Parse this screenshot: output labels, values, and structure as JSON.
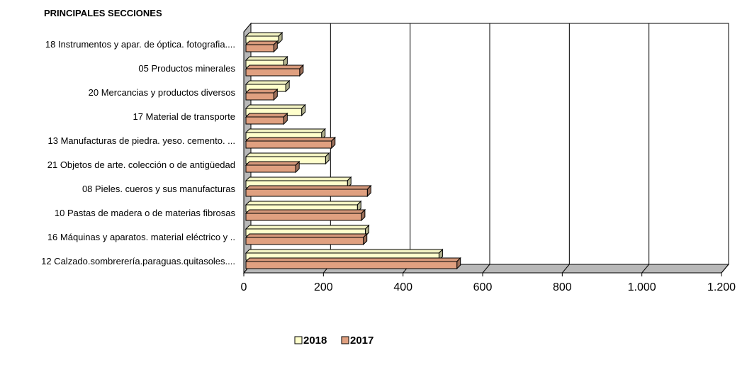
{
  "chart_data": {
    "type": "bar",
    "orientation": "horizontal",
    "title": "PRINCIPALES SECCIONES",
    "annotation": "%",
    "categories": [
      "18 Instrumentos y apar. de óptica. fotografia....",
      "05 Productos minerales",
      "20 Mercancias y productos diversos",
      "17 Material de transporte",
      "13 Manufacturas de piedra. yeso. cemento. ...",
      "21 Objetos de arte.  colección o de antigüedad",
      "08 Pieles. cueros y sus manufacturas",
      "10 Pastas de madera o de materias fibrosas",
      "16 Máquinas y aparatos. material eléctrico y ..",
      "12 Calzado.sombrerería.paraguas.quitasoles...."
    ],
    "series": [
      {
        "name": "2018",
        "color": "#FFFFCC",
        "values": [
          82,
          95,
          100,
          140,
          190,
          200,
          255,
          280,
          300,
          485
        ]
      },
      {
        "name": "2017",
        "color": "#E0A080",
        "values": [
          70,
          135,
          70,
          95,
          215,
          125,
          305,
          290,
          295,
          530
        ]
      }
    ],
    "xlim": [
      0,
      1200
    ],
    "xticks": [
      "0",
      "200",
      "400",
      "600",
      "800",
      "1.000",
      "1.200"
    ],
    "grid": true,
    "legend_position": "bottom-center"
  }
}
